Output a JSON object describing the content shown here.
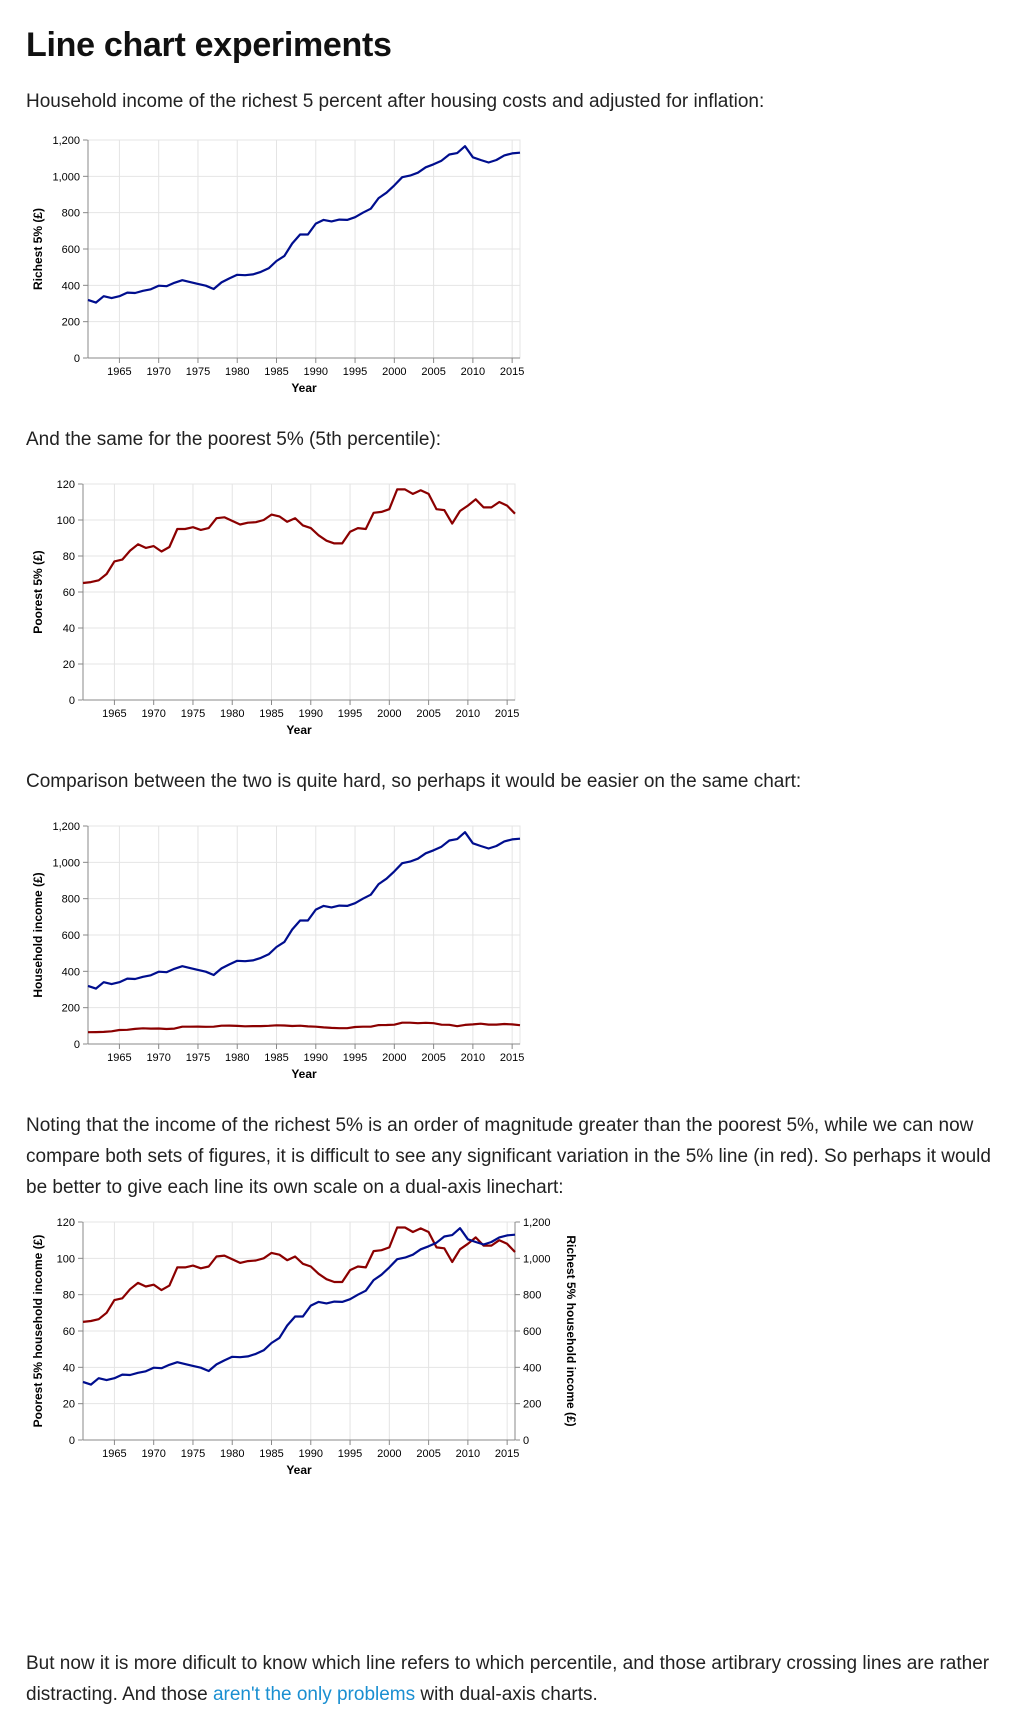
{
  "page_title": "Line chart experiments",
  "paragraphs": {
    "p1": "Household income of the richest 5 percent after housing costs and adjusted for inflation:",
    "p2": "And the same for the poorest 5% (5th percentile):",
    "p3": "Comparison between the two is quite hard, so perhaps it would be easier on the same chart:",
    "p4": "Noting that the income of the richest 5% is an order of magnitude greater than the poorest 5%, while we can now compare both sets of figures, it is difficult to see any significant variation in the 5% line (in red). So perhaps it would be better to give each line its own scale on a dual-axis linechart:",
    "p5_before": "But now it is more dificult to know which line refers to which percentile, and those artibrary crossing lines are rather distracting. And those ",
    "p5_link": "aren't the only problems",
    "p5_after": " with dual-axis charts."
  },
  "colors": {
    "richest": "#000e8e",
    "poorest": "#8b0000",
    "grid": "#e4e4e4",
    "axis": "#888888"
  },
  "chart_data": [
    {
      "type": "line",
      "xlabel": "Year",
      "ylabel": "Richest 5% (£)",
      "xlim": [
        1961,
        2016
      ],
      "ylim": [
        0,
        1200
      ],
      "xticks": [
        "1965",
        "1970",
        "1975",
        "1980",
        "1985",
        "1990",
        "1995",
        "2000",
        "2005",
        "2010",
        "2015"
      ],
      "yticks": [
        "0",
        "200",
        "400",
        "600",
        "800",
        "1,000",
        "1,200"
      ],
      "series": [
        {
          "key": "richest",
          "color": "#000e8e"
        }
      ]
    },
    {
      "type": "line",
      "xlabel": "Year",
      "ylabel": "Poorest 5% (£)",
      "xlim": [
        1961,
        2016
      ],
      "ylim": [
        0,
        120
      ],
      "xticks": [
        "1965",
        "1970",
        "1975",
        "1980",
        "1985",
        "1990",
        "1995",
        "2000",
        "2005",
        "2010",
        "2015"
      ],
      "yticks": [
        "0",
        "20",
        "40",
        "60",
        "80",
        "100",
        "120"
      ],
      "series": [
        {
          "key": "poorest",
          "color": "#8b0000"
        }
      ]
    },
    {
      "type": "line",
      "xlabel": "Year",
      "ylabel": "Household income (£)",
      "xlim": [
        1961,
        2016
      ],
      "ylim": [
        0,
        1200
      ],
      "xticks": [
        "1965",
        "1970",
        "1975",
        "1980",
        "1985",
        "1990",
        "1995",
        "2000",
        "2005",
        "2010",
        "2015"
      ],
      "yticks": [
        "0",
        "200",
        "400",
        "600",
        "800",
        "1,000",
        "1,200"
      ],
      "series": [
        {
          "key": "richest",
          "color": "#000e8e"
        },
        {
          "key": "poorest",
          "color": "#8b0000"
        }
      ]
    },
    {
      "type": "line",
      "xlabel": "Year",
      "ylabel": "Poorest 5% household income (£)",
      "ylabel_right": "Richest 5% household income (£)",
      "xlim": [
        1961,
        2016
      ],
      "ylim": [
        0,
        120
      ],
      "ylim_right": [
        0,
        1200
      ],
      "xticks": [
        "1965",
        "1970",
        "1975",
        "1980",
        "1985",
        "1990",
        "1995",
        "2000",
        "2005",
        "2010",
        "2015"
      ],
      "yticks": [
        "0",
        "20",
        "40",
        "60",
        "80",
        "100",
        "120"
      ],
      "yticks_right": [
        "0",
        "200",
        "400",
        "600",
        "800",
        "1,000",
        "1,200"
      ],
      "series": [
        {
          "key": "poorest",
          "color": "#8b0000",
          "axis": "left"
        },
        {
          "key": "richest",
          "color": "#000e8e",
          "axis": "right"
        }
      ]
    }
  ],
  "series_data": {
    "years": [
      1961,
      1962,
      1963,
      1964,
      1965,
      1966,
      1967,
      1968,
      1969,
      1970,
      1971,
      1972,
      1973,
      1974,
      1975,
      1976,
      1977,
      1978,
      1979,
      1980,
      1981,
      1982,
      1983,
      1984,
      1985,
      1986,
      1987,
      1988,
      1989,
      1990,
      1991,
      1992,
      1993,
      1994,
      1995,
      1996,
      1997,
      1998,
      1999,
      2000,
      2001,
      2002,
      2003,
      2004,
      2005,
      2006,
      2007,
      2008,
      2009,
      2010,
      2011,
      2012,
      2013,
      2014,
      2015,
      2016
    ],
    "richest": [
      320,
      305,
      340,
      330,
      340,
      360,
      358,
      370,
      378,
      398,
      395,
      414,
      428,
      418,
      408,
      398,
      380,
      416,
      438,
      458,
      456,
      460,
      474,
      494,
      534,
      562,
      630,
      680,
      680,
      740,
      760,
      752,
      762,
      760,
      775,
      800,
      822,
      880,
      910,
      950,
      995,
      1004,
      1020,
      1050,
      1066,
      1086,
      1120,
      1128,
      1166,
      1105,
      1090,
      1076,
      1090,
      1115,
      1126,
      1130
    ],
    "poorest": [
      65,
      65.5,
      66.5,
      70,
      77,
      78,
      83,
      86.5,
      84.5,
      85.5,
      82.5,
      85,
      95,
      95,
      96,
      94.5,
      95.5,
      101,
      101.5,
      99.5,
      97.5,
      98.5,
      98.8,
      100,
      103,
      102,
      99,
      101,
      97,
      95.5,
      91.5,
      88.5,
      87,
      87,
      93.5,
      95.5,
      95,
      104,
      104.5,
      106,
      117,
      117,
      114.5,
      116.5,
      114.5,
      106,
      105.5,
      98,
      105,
      108,
      111.5,
      107,
      107,
      110,
      108,
      103.5
    ]
  }
}
